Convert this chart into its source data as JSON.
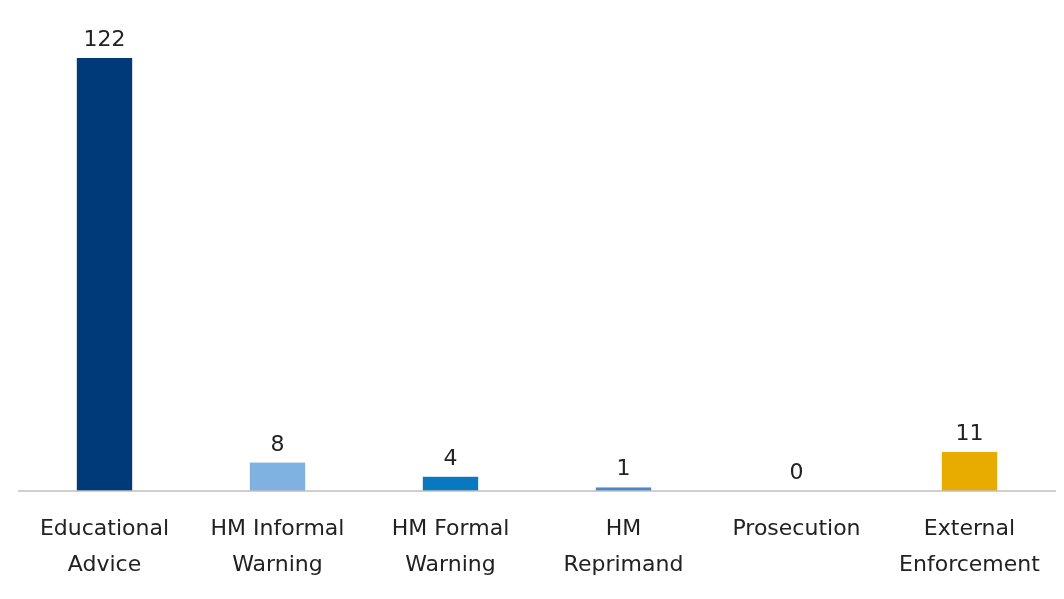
{
  "chart_data": {
    "type": "bar",
    "categories": [
      "Educational Advice",
      "HM Informal Warning",
      "HM Formal Warning",
      "HM Reprimand",
      "Prosecution",
      "External Enforcement"
    ],
    "values": [
      122,
      8,
      4,
      1,
      0,
      11
    ],
    "colors": [
      "#003a78",
      "#7fb2e0",
      "#0a78c0",
      "#4a86d0",
      "#4a86d0",
      "#e8ac00"
    ],
    "data_labels": true
  }
}
